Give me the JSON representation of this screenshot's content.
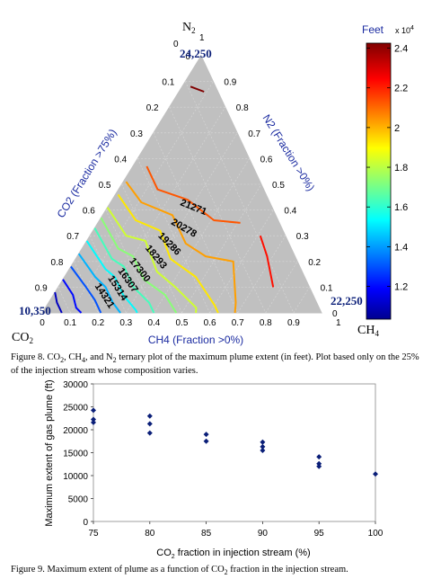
{
  "chart_data": [
    {
      "type": "ternary-contour",
      "title": "",
      "axes": {
        "left": {
          "label": "CO2 (Fraction >75%)",
          "ticks": [
            "0",
            "0.1",
            "0.2",
            "0.3",
            "0.4",
            "0.5",
            "0.6",
            "0.7",
            "0.8",
            "0.9"
          ]
        },
        "right": {
          "label": "N2 (Fraction >0%)",
          "ticks": [
            "0",
            "0.1",
            "0.2",
            "0.3",
            "0.4",
            "0.5",
            "0.6",
            "0.7",
            "0.8",
            "0.9"
          ]
        },
        "bottom": {
          "label": "CH4 (Fraction >0%)",
          "ticks": [
            "0",
            "0.1",
            "0.2",
            "0.3",
            "0.4",
            "0.5",
            "0.6",
            "0.7",
            "0.8",
            "0.9"
          ]
        }
      },
      "apex_labels": {
        "top": "N",
        "top_sub": "2",
        "left": "CO",
        "left_sub": "2",
        "right": "CH",
        "right_sub": "4",
        "top_one": "1",
        "top_zero": "0",
        "right_one": "1"
      },
      "vertex_values": {
        "top": "24,250",
        "left": "10,350",
        "right": "22,250"
      },
      "contours": [
        {
          "level": 24250,
          "label": ""
        },
        {
          "level": 22250,
          "label": ""
        },
        {
          "level": 21271,
          "label": "21271"
        },
        {
          "level": 20278,
          "label": "20278"
        },
        {
          "level": 19286,
          "label": "19286"
        },
        {
          "level": 18293,
          "label": "18293"
        },
        {
          "level": 17300,
          "label": "17300"
        },
        {
          "level": 16307,
          "label": "16307"
        },
        {
          "level": 15314,
          "label": "15314"
        },
        {
          "level": 14321,
          "label": "14321"
        },
        {
          "level": 13000,
          "label": ""
        },
        {
          "level": 12000,
          "label": ""
        },
        {
          "level": 11000,
          "label": ""
        }
      ],
      "colorbar": {
        "title": "Feet",
        "exponent_base": "x 10",
        "exponent_power": "4",
        "ticks": [
          "1.2",
          "1.4",
          "1.6",
          "1.8",
          "2",
          "2.2",
          "2.4"
        ],
        "range": [
          1.035,
          2.425
        ],
        "colormap": "jet"
      }
    },
    {
      "type": "scatter",
      "title": "",
      "xlabel": "CO2 fraction in injection stream (%)",
      "xlabel_parts": {
        "pre": "CO",
        "sub": "2",
        "post": " fraction in injection stream (%)"
      },
      "ylabel": "Maximum extent of gas plume (ft)",
      "xlim": [
        75,
        100
      ],
      "ylim": [
        0,
        30000
      ],
      "x_ticks": [
        "75",
        "80",
        "85",
        "90",
        "95",
        "100"
      ],
      "y_ticks": [
        "0",
        "5000",
        "10000",
        "15000",
        "20000",
        "25000",
        "30000"
      ],
      "marker_color": "#0a1e78",
      "points": [
        {
          "x": 75,
          "y": 24250
        },
        {
          "x": 75,
          "y": 22250
        },
        {
          "x": 75,
          "y": 21600
        },
        {
          "x": 80,
          "y": 23000
        },
        {
          "x": 80,
          "y": 21300
        },
        {
          "x": 80,
          "y": 19300
        },
        {
          "x": 85,
          "y": 19000
        },
        {
          "x": 85,
          "y": 17500
        },
        {
          "x": 90,
          "y": 17300
        },
        {
          "x": 90,
          "y": 16300
        },
        {
          "x": 90,
          "y": 15500
        },
        {
          "x": 95,
          "y": 14100
        },
        {
          "x": 95,
          "y": 12600
        },
        {
          "x": 95,
          "y": 12000
        },
        {
          "x": 100,
          "y": 10350
        }
      ]
    }
  ],
  "captions": {
    "fig8": {
      "lead": "Figure 8. CO",
      "s1": "2",
      "m1": ", CH",
      "s2": "4",
      "m2": ", and N",
      "s3": "2",
      "tail": " ternary plot of the maximum plume extent (in feet). Plot based only on the 25% of the injection stream whose composition varies."
    },
    "fig9": {
      "lead": "Figure 9. Maximum extent of plume as a function of CO",
      "s1": "2",
      "tail": " fraction in the injection stream."
    }
  }
}
